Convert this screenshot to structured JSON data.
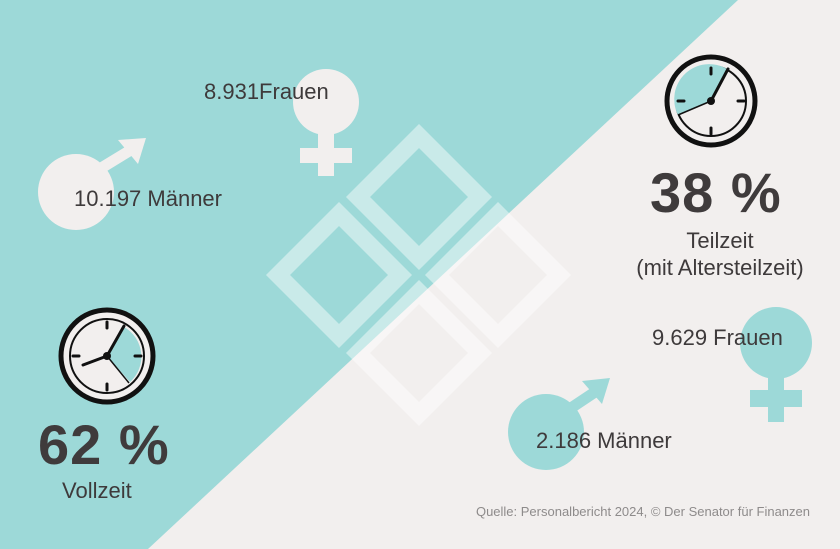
{
  "colors": {
    "teal": "#9dd9d8",
    "light_background": "#f2efee",
    "circle_light": "#f2efee",
    "circle_teal": "#9dd9d8",
    "text_dark": "#3e3a3b",
    "source_text": "#8e8b8b"
  },
  "vollzeit": {
    "maenner": "10.197 Männer",
    "frauen": "8.931Frauen",
    "percent": "62 %",
    "label": "Vollzeit",
    "icons": [
      "male-symbol-icon",
      "female-symbol-icon",
      "clock-icon"
    ]
  },
  "teilzeit": {
    "maenner": "2.186 Männer",
    "frauen": "9.629 Frauen",
    "percent": "38 %",
    "label_line1": "Teilzeit",
    "label_line2": "(mit Altersteilzeit)",
    "icons": [
      "male-symbol-icon",
      "female-symbol-icon",
      "clock-icon"
    ]
  },
  "source": "Quelle: Personalbericht 2024, © Der Senator für Finanzen"
}
